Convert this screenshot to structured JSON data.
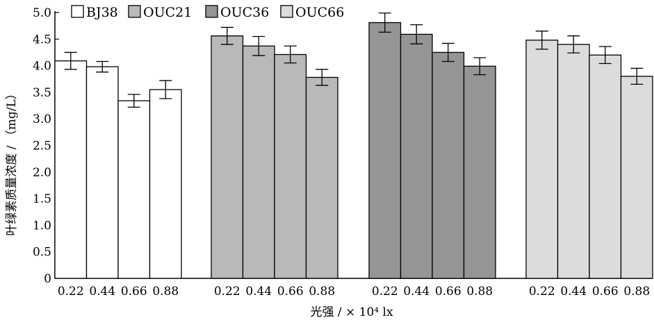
{
  "chart_data": {
    "type": "bar",
    "title": "",
    "xlabel": "光强 / × 10⁴ lx",
    "ylabel": "叶绿素质量浓度 / （mg/L）",
    "ylim": [
      0,
      5.0
    ],
    "yticks": [
      "0",
      "0.5",
      "1.0",
      "1.5",
      "2.0",
      "2.5",
      "3.0",
      "3.5",
      "4.0",
      "4.5",
      "5.0"
    ],
    "categories": [
      "0.22",
      "0.44",
      "0.66",
      "0.88"
    ],
    "legend_position": "top-left",
    "grid": false,
    "series": [
      {
        "name": "BJ38",
        "color": "#ffffff",
        "values": [
          4.09,
          3.98,
          3.34,
          3.55
        ],
        "errors": [
          0.16,
          0.1,
          0.12,
          0.17
        ]
      },
      {
        "name": "OUC21",
        "color": "#b9b9b9",
        "values": [
          4.56,
          4.37,
          4.21,
          3.78
        ],
        "errors": [
          0.16,
          0.18,
          0.16,
          0.15
        ]
      },
      {
        "name": "OUC36",
        "color": "#959595",
        "values": [
          4.81,
          4.59,
          4.25,
          3.99
        ],
        "errors": [
          0.18,
          0.18,
          0.17,
          0.16
        ]
      },
      {
        "name": "OUC66",
        "color": "#dcdcdc",
        "values": [
          4.48,
          4.4,
          4.2,
          3.8
        ],
        "errors": [
          0.17,
          0.16,
          0.16,
          0.15
        ]
      }
    ]
  }
}
